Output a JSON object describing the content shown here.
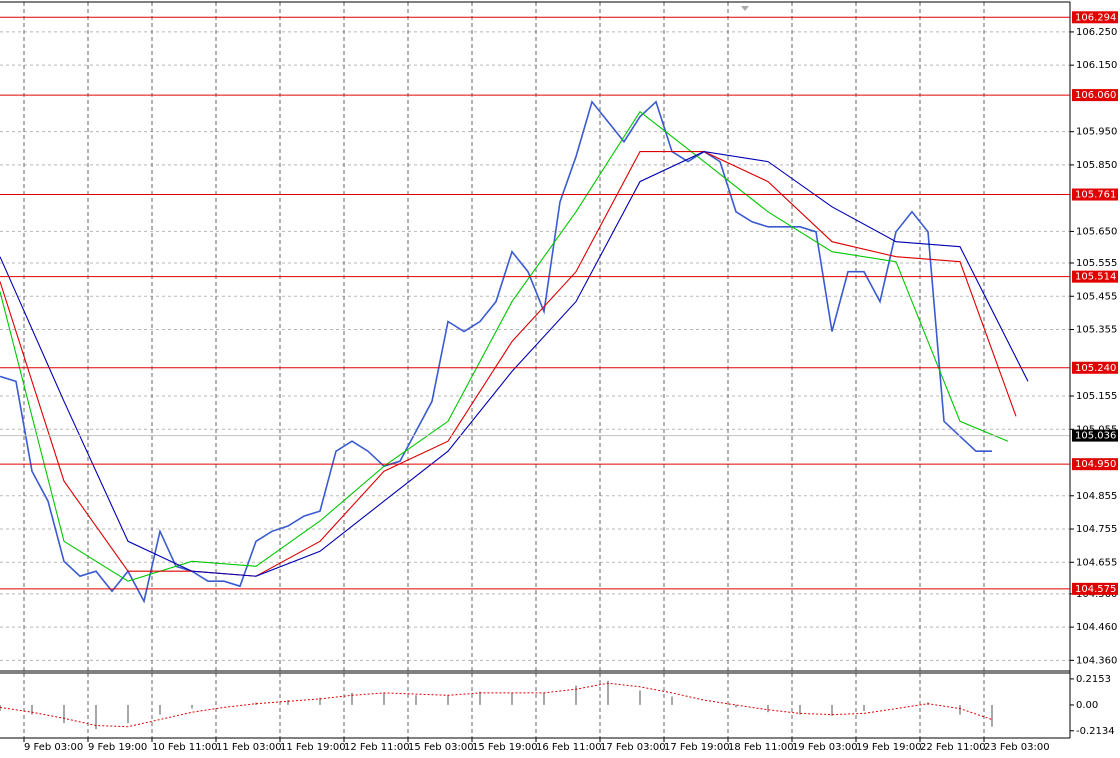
{
  "chart_data": [
    {
      "type": "line",
      "xlim": [
        0,
        267.5
      ],
      "ylim": [
        104.328,
        106.34
      ],
      "xticks": [
        {
          "value": 6,
          "label": "9 Feb 03:00"
        },
        {
          "value": 22,
          "label": "9 Feb 19:00"
        },
        {
          "value": 38,
          "label": "10 Feb 11:00"
        },
        {
          "value": 54,
          "label": "11 Feb 03:00"
        },
        {
          "value": 70,
          "label": "11 Feb 19:00"
        },
        {
          "value": 86,
          "label": "12 Feb 11:00"
        },
        {
          "value": 102,
          "label": "15 Feb 03:00"
        },
        {
          "value": 118,
          "label": "15 Feb 19:00"
        },
        {
          "value": 134,
          "label": "16 Feb 11:00"
        },
        {
          "value": 150,
          "label": "17 Feb 03:00"
        },
        {
          "value": 166,
          "label": "17 Feb 19:00"
        },
        {
          "value": 182,
          "label": "18 Feb 11:00"
        },
        {
          "value": 198,
          "label": "19 Feb 03:00"
        },
        {
          "value": 214,
          "label": "19 Feb 19:00"
        },
        {
          "value": 230,
          "label": "22 Feb 11:00"
        },
        {
          "value": 246,
          "label": "23 Feb 03:00"
        }
      ],
      "yticks": [
        {
          "value": 106.25,
          "label": "106.250"
        },
        {
          "value": 106.15,
          "label": "106.150"
        },
        {
          "value": 105.95,
          "label": "105.950"
        },
        {
          "value": 105.85,
          "label": "105.850"
        },
        {
          "value": 105.65,
          "label": "105.650"
        },
        105.555,
        105.455,
        105.355,
        105.155,
        105.055,
        104.855,
        104.755,
        104.655,
        {
          "value": 104.56,
          "label": "104.560"
        },
        {
          "value": 104.46,
          "label": "104.460"
        },
        {
          "value": 104.36,
          "label": "104.360"
        }
      ],
      "grid": true,
      "levels": [
        {
          "value": 106.294,
          "label": "106.294"
        },
        {
          "value": 106.06,
          "label": "106.060"
        },
        {
          "value": 105.761,
          "label": "105.761"
        },
        {
          "value": 105.514,
          "label": "105.514"
        },
        {
          "value": 105.24,
          "label": "105.240"
        },
        {
          "value": 104.95,
          "label": "104.950"
        },
        {
          "value": 104.575,
          "label": "104.575"
        }
      ],
      "level_color": "#e00000",
      "current": {
        "value": 105.036,
        "label": "105.036"
      },
      "x": [
        0,
        4,
        8,
        12,
        16,
        20,
        24,
        28,
        32,
        36,
        40,
        44,
        48,
        52,
        56,
        60,
        64,
        68,
        72,
        76,
        80,
        84,
        88,
        92,
        96,
        100,
        104,
        108,
        112,
        116,
        120,
        124,
        128,
        132,
        136,
        140,
        144,
        148,
        152,
        156,
        160,
        164,
        168,
        172,
        176,
        180,
        184,
        188,
        192,
        196,
        200,
        204,
        208,
        212,
        216,
        220,
        224,
        228,
        232,
        236,
        240,
        244,
        248
      ],
      "series": [
        {
          "color": "#3a5bd0",
          "values": [
            105.214,
            105.199,
            104.929,
            104.839,
            104.658,
            104.613,
            104.628,
            104.568,
            104.628,
            104.538,
            104.748,
            104.643,
            104.628,
            104.598,
            104.598,
            104.583,
            104.718,
            104.748,
            104.764,
            104.794,
            104.809,
            104.989,
            105.019,
            104.989,
            104.944,
            104.959,
            105.049,
            105.139,
            105.379,
            105.349,
            105.379,
            105.439,
            105.589,
            105.529,
            105.409,
            105.739,
            105.875,
            106.04,
            105.98,
            105.92,
            105.995,
            106.04,
            105.89,
            105.86,
            105.89,
            105.86,
            105.709,
            105.679,
            105.664,
            105.664,
            105.664,
            105.649,
            105.349,
            105.529,
            105.529,
            105.439,
            105.649,
            105.709,
            105.649,
            105.079,
            105.034,
            104.989,
            104.989
          ]
        },
        {
          "color": "#00c800",
          "x": [
            0,
            16,
            32,
            48,
            64,
            80,
            96,
            112,
            128,
            144,
            160,
            176,
            192,
            208,
            224,
            240,
            252
          ],
          "values": [
            105.469,
            104.718,
            104.598,
            104.658,
            104.643,
            104.779,
            104.944,
            105.079,
            105.439,
            105.709,
            106.01,
            105.86,
            105.709,
            105.589,
            105.559,
            105.079,
            105.019
          ]
        },
        {
          "color": "#dd0000",
          "x": [
            0,
            16,
            32,
            48,
            64,
            80,
            96,
            112,
            128,
            144,
            160,
            176,
            192,
            208,
            224,
            240,
            254
          ],
          "values": [
            105.499,
            104.899,
            104.628,
            104.628,
            104.613,
            104.718,
            104.929,
            105.019,
            105.319,
            105.529,
            105.89,
            105.89,
            105.8,
            105.619,
            105.574,
            105.559,
            105.094
          ]
        },
        {
          "color": "#0000b4",
          "x": [
            0,
            16,
            32,
            48,
            64,
            80,
            96,
            112,
            128,
            144,
            160,
            176,
            192,
            208,
            224,
            240,
            257
          ],
          "values": [
            105.574,
            105.139,
            104.718,
            104.628,
            104.613,
            104.688,
            104.839,
            104.989,
            105.229,
            105.439,
            105.8,
            105.89,
            105.86,
            105.724,
            105.619,
            105.604,
            105.199
          ]
        }
      ]
    },
    {
      "type": "bar",
      "xlim": [
        0,
        267.5
      ],
      "ylim": [
        -0.273,
        0.264
      ],
      "yticks": [
        0.2153,
        {
          "value": 0,
          "label": "0.00"
        },
        -0.2134
      ],
      "x": [
        0,
        8,
        16,
        24,
        32,
        40,
        48,
        56,
        64,
        72,
        80,
        88,
        96,
        104,
        112,
        120,
        128,
        136,
        144,
        152,
        160,
        168,
        176,
        184,
        192,
        200,
        208,
        216,
        224,
        232,
        240,
        248
      ],
      "series": [
        {
          "color": "#a8a8a8",
          "values": [
            -0.05,
            -0.08,
            -0.15,
            -0.2,
            -0.15,
            -0.08,
            -0.03,
            0,
            0.02,
            0.04,
            0.06,
            0.1,
            0.1,
            0.08,
            0.08,
            0.11,
            0.1,
            0.1,
            0.16,
            0.2,
            0.12,
            0.07,
            0,
            -0.02,
            -0.06,
            -0.08,
            -0.09,
            -0.05,
            0,
            0.02,
            -0.08,
            -0.18
          ]
        },
        {
          "color": "#dd0000",
          "values": [
            -0.02,
            -0.06,
            -0.11,
            -0.17,
            -0.18,
            -0.12,
            -0.06,
            -0.02,
            0.01,
            0.03,
            0.05,
            0.08,
            0.1,
            0.09,
            0.08,
            0.1,
            0.1,
            0.1,
            0.13,
            0.18,
            0.15,
            0.1,
            0.04,
            0,
            -0.04,
            -0.07,
            -0.08,
            -0.07,
            -0.03,
            0.01,
            -0.03,
            -0.12
          ]
        }
      ]
    }
  ]
}
